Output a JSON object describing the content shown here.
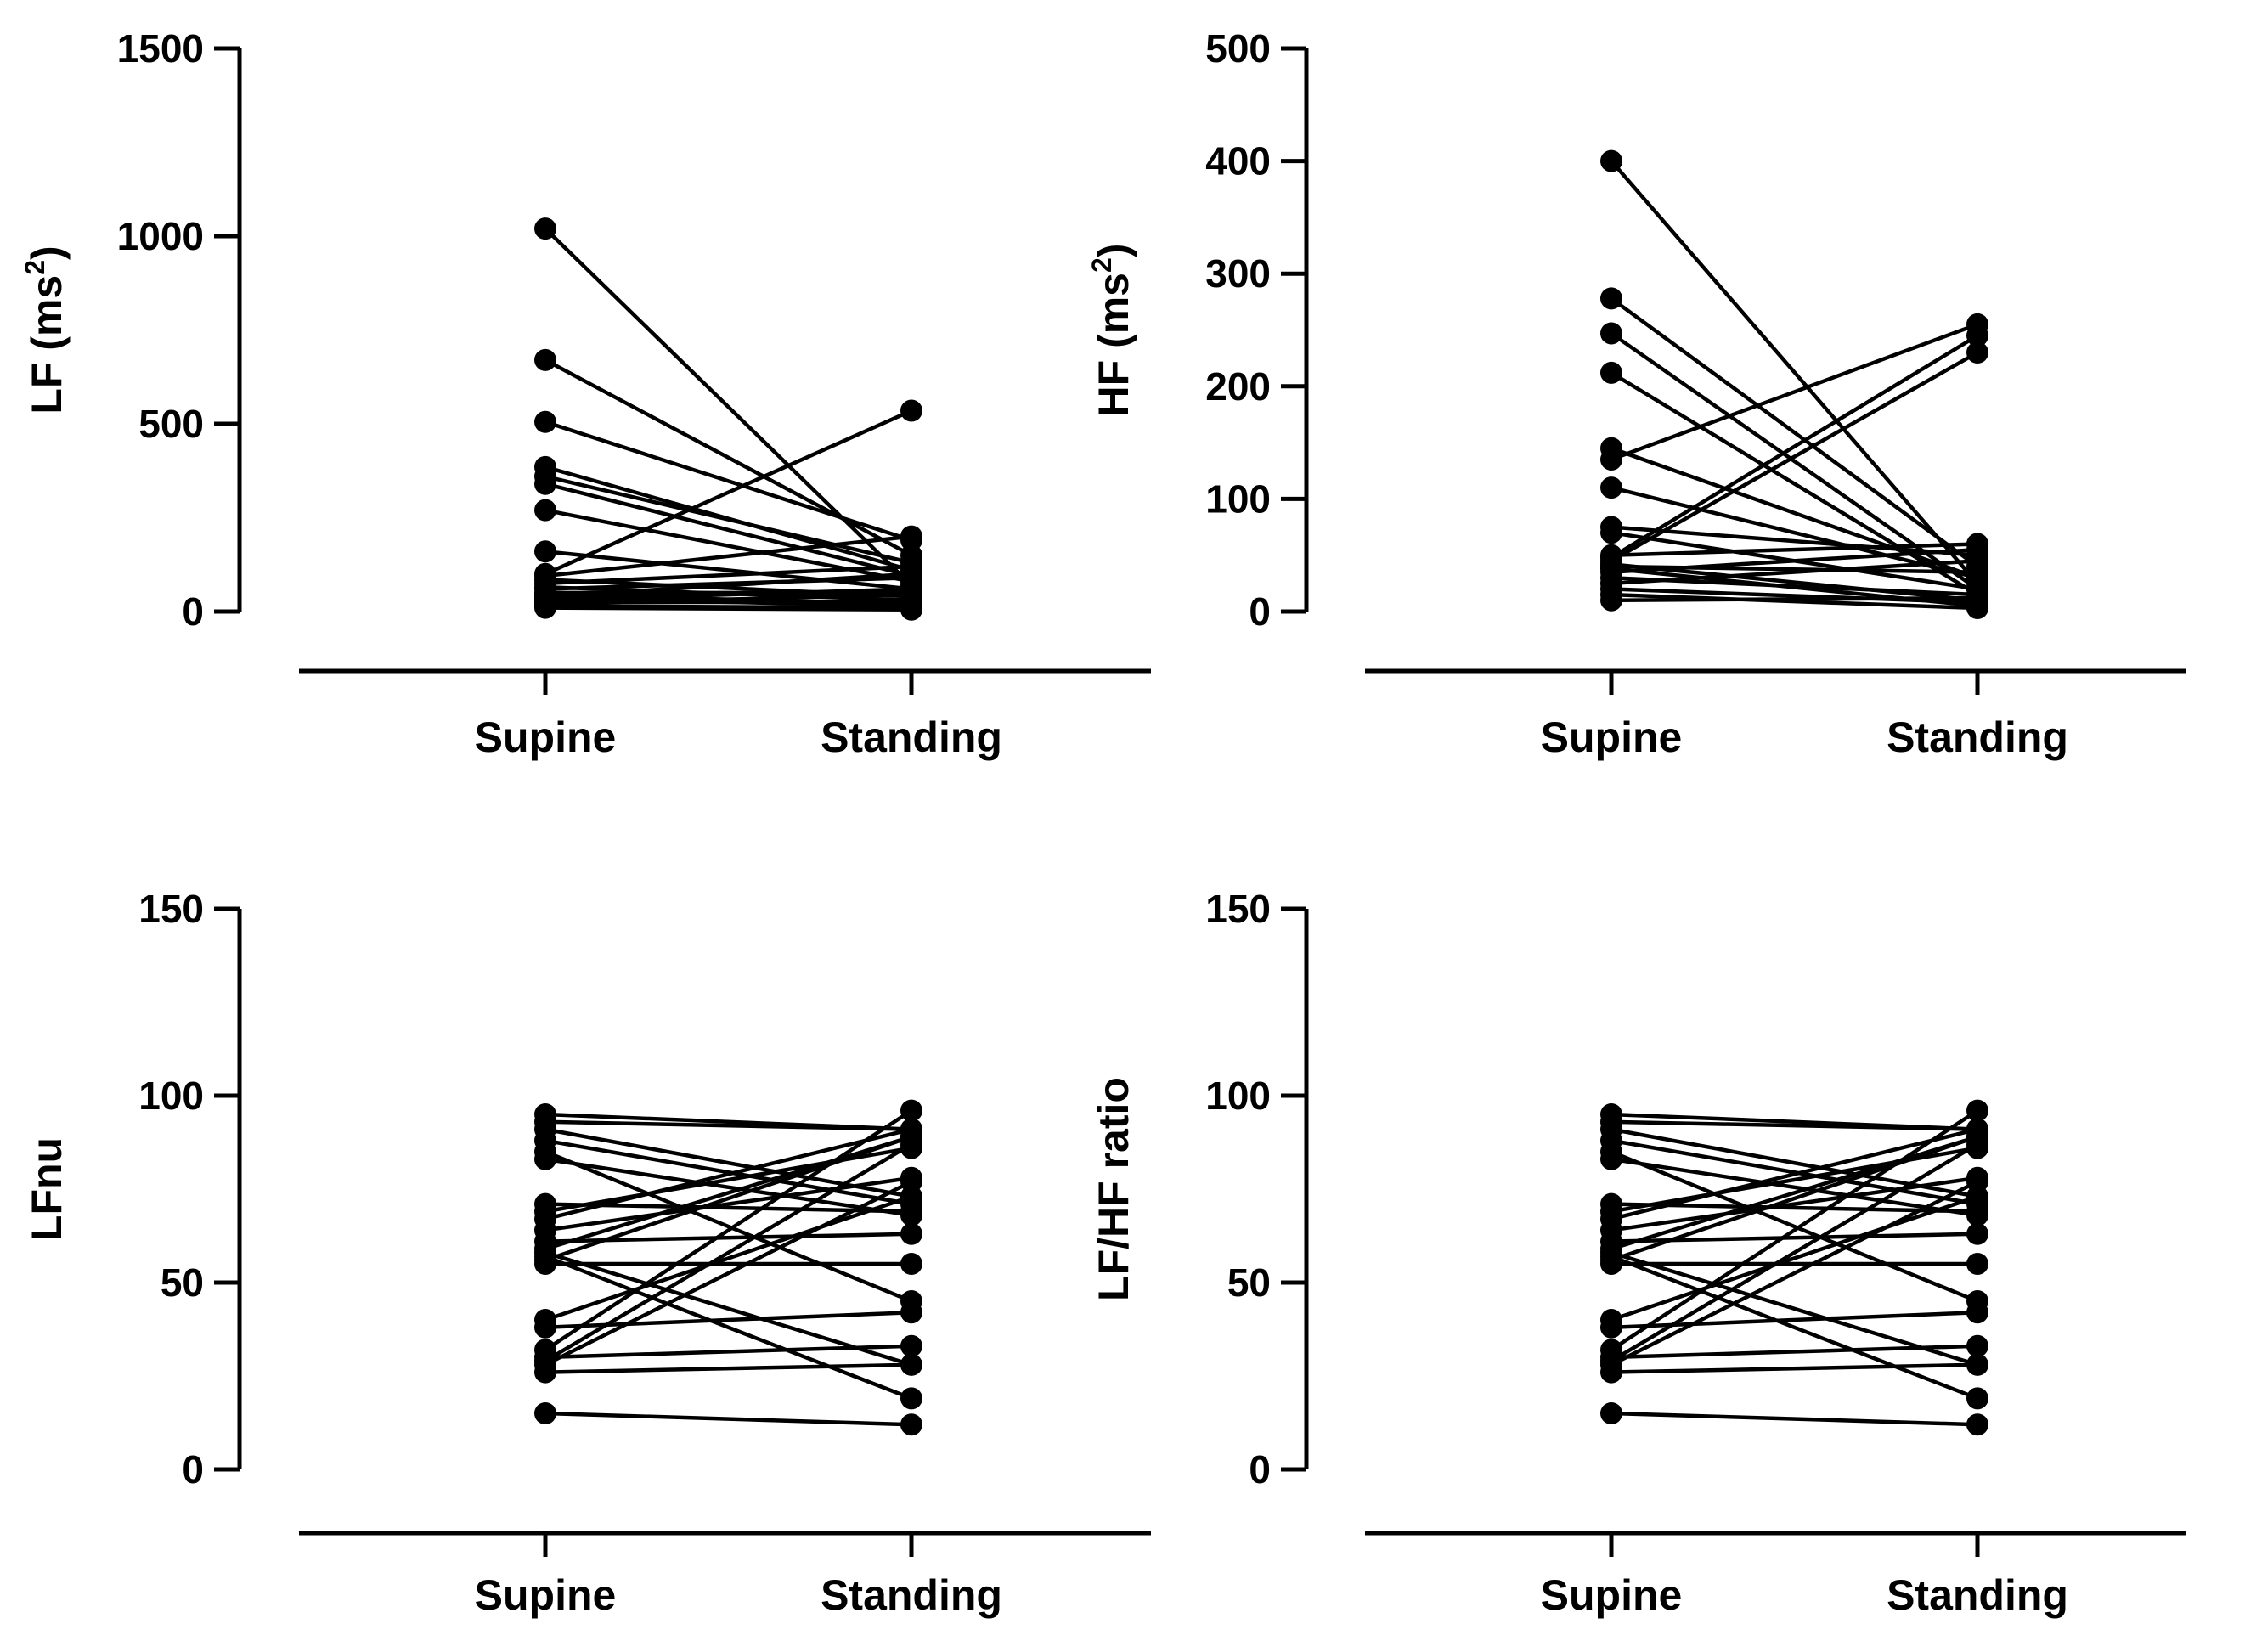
{
  "chart_data": [
    {
      "type": "line",
      "panel": "top-left",
      "categories": [
        "Supine",
        "Standing"
      ],
      "ylabel_main": "LF (ms",
      "ylabel_sup": "2",
      "ylabel_end": ")",
      "ylim": [
        0,
        1500
      ],
      "yticks": [
        0,
        500,
        1000,
        1500
      ],
      "ytick_labels": [
        "0",
        "500",
        "1000",
        "1500"
      ],
      "series": [
        {
          "values": [
            1020,
            70
          ]
        },
        {
          "values": [
            670,
            150
          ]
        },
        {
          "values": [
            505,
            190
          ]
        },
        {
          "values": [
            385,
            110
          ]
        },
        {
          "values": [
            360,
            130
          ]
        },
        {
          "values": [
            340,
            95
          ]
        },
        {
          "values": [
            270,
            80
          ]
        },
        {
          "values": [
            160,
            60
          ]
        },
        {
          "values": [
            100,
            535
          ]
        },
        {
          "values": [
            95,
            200
          ]
        },
        {
          "values": [
            85,
            40
          ]
        },
        {
          "values": [
            75,
            120
          ]
        },
        {
          "values": [
            65,
            30
          ]
        },
        {
          "values": [
            60,
            90
          ]
        },
        {
          "values": [
            50,
            50
          ]
        },
        {
          "values": [
            45,
            20
          ]
        },
        {
          "values": [
            40,
            100
          ]
        },
        {
          "values": [
            35,
            15
          ]
        },
        {
          "values": [
            30,
            60
          ]
        },
        {
          "values": [
            25,
            25
          ]
        },
        {
          "values": [
            20,
            45
          ]
        },
        {
          "values": [
            15,
            10
          ]
        },
        {
          "values": [
            10,
            5
          ]
        }
      ]
    },
    {
      "type": "line",
      "panel": "top-right",
      "categories": [
        "Supine",
        "Standing"
      ],
      "ylabel_main": "HF (ms",
      "ylabel_sup": "2",
      "ylabel_end": ")",
      "ylim": [
        0,
        500
      ],
      "yticks": [
        0,
        100,
        200,
        300,
        400,
        500
      ],
      "ytick_labels": [
        "0",
        "100",
        "200",
        "300",
        "400",
        "500"
      ],
      "series": [
        {
          "values": [
            400,
            25
          ]
        },
        {
          "values": [
            278,
            40
          ]
        },
        {
          "values": [
            247,
            20
          ]
        },
        {
          "values": [
            212,
            15
          ]
        },
        {
          "values": [
            145,
            30
          ]
        },
        {
          "values": [
            135,
            255
          ]
        },
        {
          "values": [
            110,
            30
          ]
        },
        {
          "values": [
            75,
            50
          ]
        },
        {
          "values": [
            70,
            20
          ]
        },
        {
          "values": [
            50,
            60
          ]
        },
        {
          "values": [
            48,
            245
          ]
        },
        {
          "values": [
            45,
            230
          ]
        },
        {
          "values": [
            42,
            10
          ]
        },
        {
          "values": [
            40,
            35
          ]
        },
        {
          "values": [
            38,
            5
          ]
        },
        {
          "values": [
            35,
            55
          ]
        },
        {
          "values": [
            30,
            15
          ]
        },
        {
          "values": [
            25,
            45
          ]
        },
        {
          "values": [
            20,
            8
          ]
        },
        {
          "values": [
            15,
            3
          ]
        },
        {
          "values": [
            10,
            12
          ]
        }
      ]
    },
    {
      "type": "line",
      "panel": "bottom-left",
      "categories": [
        "Supine",
        "Standing"
      ],
      "ylabel_main": "LFnu",
      "ylabel_sup": "",
      "ylabel_end": "",
      "ylim": [
        0,
        150
      ],
      "yticks": [
        0,
        50,
        100,
        150
      ],
      "ytick_labels": [
        "0",
        "50",
        "100",
        "150"
      ],
      "series": [
        {
          "values": [
            95,
            91
          ]
        },
        {
          "values": [
            93,
            91
          ]
        },
        {
          "values": [
            91,
            73
          ]
        },
        {
          "values": [
            88,
            71
          ]
        },
        {
          "values": [
            85,
            45
          ]
        },
        {
          "values": [
            83,
            68
          ]
        },
        {
          "values": [
            71,
            69
          ]
        },
        {
          "values": [
            69,
            86
          ]
        },
        {
          "values": [
            67,
            91
          ]
        },
        {
          "values": [
            64,
            78
          ]
        },
        {
          "values": [
            61,
            63
          ]
        },
        {
          "values": [
            59,
            89
          ]
        },
        {
          "values": [
            58,
            28
          ]
        },
        {
          "values": [
            57,
            19
          ]
        },
        {
          "values": [
            56,
            89
          ]
        },
        {
          "values": [
            55,
            55
          ]
        },
        {
          "values": [
            40,
            73
          ]
        },
        {
          "values": [
            38,
            42
          ]
        },
        {
          "values": [
            32,
            96
          ]
        },
        {
          "values": [
            30,
            33
          ]
        },
        {
          "values": [
            29,
            87
          ]
        },
        {
          "values": [
            28,
            77
          ]
        },
        {
          "values": [
            26,
            28
          ]
        },
        {
          "values": [
            15,
            12
          ]
        }
      ]
    },
    {
      "type": "line",
      "panel": "bottom-right",
      "categories": [
        "Supine",
        "Standing"
      ],
      "ylabel_main": "LF/HF ratio",
      "ylabel_sup": "",
      "ylabel_end": "",
      "ylim": [
        0,
        150
      ],
      "yticks": [
        0,
        50,
        100,
        150
      ],
      "ytick_labels": [
        "0",
        "50",
        "100",
        "150"
      ],
      "series": [
        {
          "values": [
            95,
            91
          ]
        },
        {
          "values": [
            93,
            91
          ]
        },
        {
          "values": [
            91,
            73
          ]
        },
        {
          "values": [
            88,
            71
          ]
        },
        {
          "values": [
            85,
            45
          ]
        },
        {
          "values": [
            83,
            68
          ]
        },
        {
          "values": [
            71,
            69
          ]
        },
        {
          "values": [
            69,
            86
          ]
        },
        {
          "values": [
            67,
            91
          ]
        },
        {
          "values": [
            64,
            78
          ]
        },
        {
          "values": [
            61,
            63
          ]
        },
        {
          "values": [
            59,
            89
          ]
        },
        {
          "values": [
            58,
            28
          ]
        },
        {
          "values": [
            57,
            19
          ]
        },
        {
          "values": [
            56,
            89
          ]
        },
        {
          "values": [
            55,
            55
          ]
        },
        {
          "values": [
            40,
            73
          ]
        },
        {
          "values": [
            38,
            42
          ]
        },
        {
          "values": [
            32,
            96
          ]
        },
        {
          "values": [
            30,
            33
          ]
        },
        {
          "values": [
            29,
            87
          ]
        },
        {
          "values": [
            28,
            77
          ]
        },
        {
          "values": [
            26,
            28
          ]
        },
        {
          "values": [
            15,
            12
          ]
        }
      ]
    }
  ]
}
